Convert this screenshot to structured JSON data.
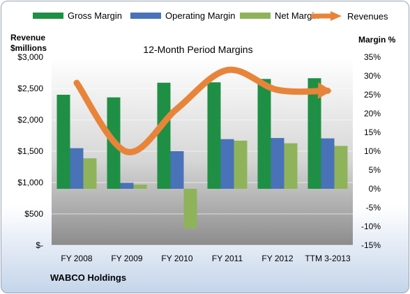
{
  "company": "WABCO Holdings",
  "legend": {
    "items": [
      {
        "name": "Gross Margin",
        "color": "#1f8f45"
      },
      {
        "name": "Operating Margin",
        "color": "#4a72b8"
      },
      {
        "name": "Net Margin",
        "color": "#8fb35a"
      },
      {
        "name": "Revenues",
        "color": "#e8843a"
      }
    ]
  },
  "chart_data": {
    "type": "bar",
    "title": "12-Month Period Margins",
    "ylabel_left": [
      "Revenue",
      "$millions"
    ],
    "ylabel_right": "Margin %",
    "categories": [
      "FY 2008",
      "FY 2009",
      "FY 2010",
      "FY 2011",
      "FY 2012",
      "TTM 3-2013"
    ],
    "y_left": {
      "min": 0,
      "max": 3000,
      "step": 500,
      "tick_labels": [
        "$-",
        "$500",
        "$1,000",
        "$1,500",
        "$2,000",
        "$2,500",
        "$3,000"
      ]
    },
    "y_right": {
      "min": -15,
      "max": 35,
      "step": 5,
      "tick_labels": [
        "-15%",
        "-10%",
        "-5%",
        "0%",
        "5%",
        "10%",
        "15%",
        "20%",
        "25%",
        "30%",
        "35%"
      ]
    },
    "series": [
      {
        "name": "Gross Margin",
        "axis": "right",
        "type": "bar",
        "color": "#1f8f45",
        "values": [
          25.0,
          24.3,
          28.2,
          28.3,
          29.2,
          29.4
        ]
      },
      {
        "name": "Operating Margin",
        "axis": "right",
        "type": "bar",
        "color": "#4a72b8",
        "values": [
          10.8,
          1.6,
          10.0,
          13.2,
          13.5,
          13.4
        ]
      },
      {
        "name": "Net Margin",
        "axis": "right",
        "type": "bar",
        "color": "#8fb35a",
        "values": [
          8.1,
          1.1,
          -10.5,
          12.8,
          12.1,
          11.4
        ]
      },
      {
        "name": "Revenues",
        "axis": "left",
        "type": "line",
        "color": "#e8843a",
        "values": [
          2589,
          1490,
          2178,
          2794,
          2477,
          2464
        ]
      }
    ],
    "grid": true,
    "legend_position": "top"
  }
}
